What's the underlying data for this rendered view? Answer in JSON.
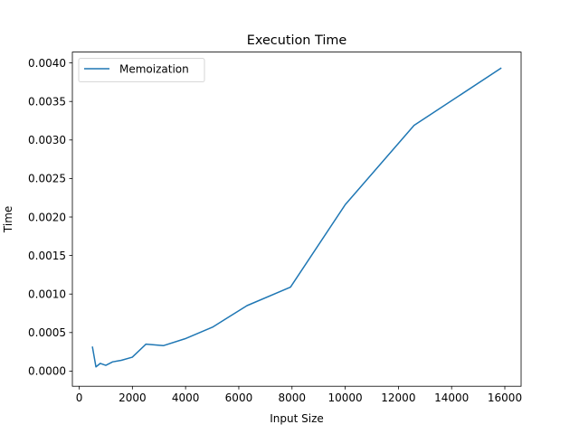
{
  "chart_data": {
    "type": "line",
    "title": "Execution Time",
    "xlabel": "Input Size",
    "ylabel": "Time",
    "xlim": [
      -256,
      16612
    ],
    "ylim": [
      -0.000197,
      0.004141
    ],
    "xticks": [
      0,
      2000,
      4000,
      6000,
      8000,
      10000,
      12000,
      14000,
      16000
    ],
    "xtick_labels": [
      "0",
      "2000",
      "4000",
      "6000",
      "8000",
      "10000",
      "12000",
      "14000",
      "16000"
    ],
    "yticks": [
      0.0,
      0.0005,
      0.001,
      0.0015,
      0.002,
      0.0025,
      0.003,
      0.0035,
      0.004
    ],
    "ytick_labels": [
      "0.0000",
      "0.0005",
      "0.0010",
      "0.0015",
      "0.0020",
      "0.0025",
      "0.0030",
      "0.0035",
      "0.0040"
    ],
    "grid": false,
    "legend_position": "top-left",
    "series": [
      {
        "name": "Memoization",
        "color": "#1f77b4",
        "x": [
          500,
          630,
          794,
          1000,
          1259,
          1585,
          1995,
          2512,
          3162,
          3981,
          5012,
          6310,
          7943,
          10000,
          12589,
          15849
        ],
        "y": [
          0.00031,
          5.5e-05,
          0.0001,
          7.5e-05,
          0.00012,
          0.00014,
          0.00018,
          0.00035,
          0.00033,
          0.00042,
          0.00057,
          0.00085,
          0.00109,
          0.00216,
          0.00319,
          0.00393
        ]
      }
    ]
  }
}
